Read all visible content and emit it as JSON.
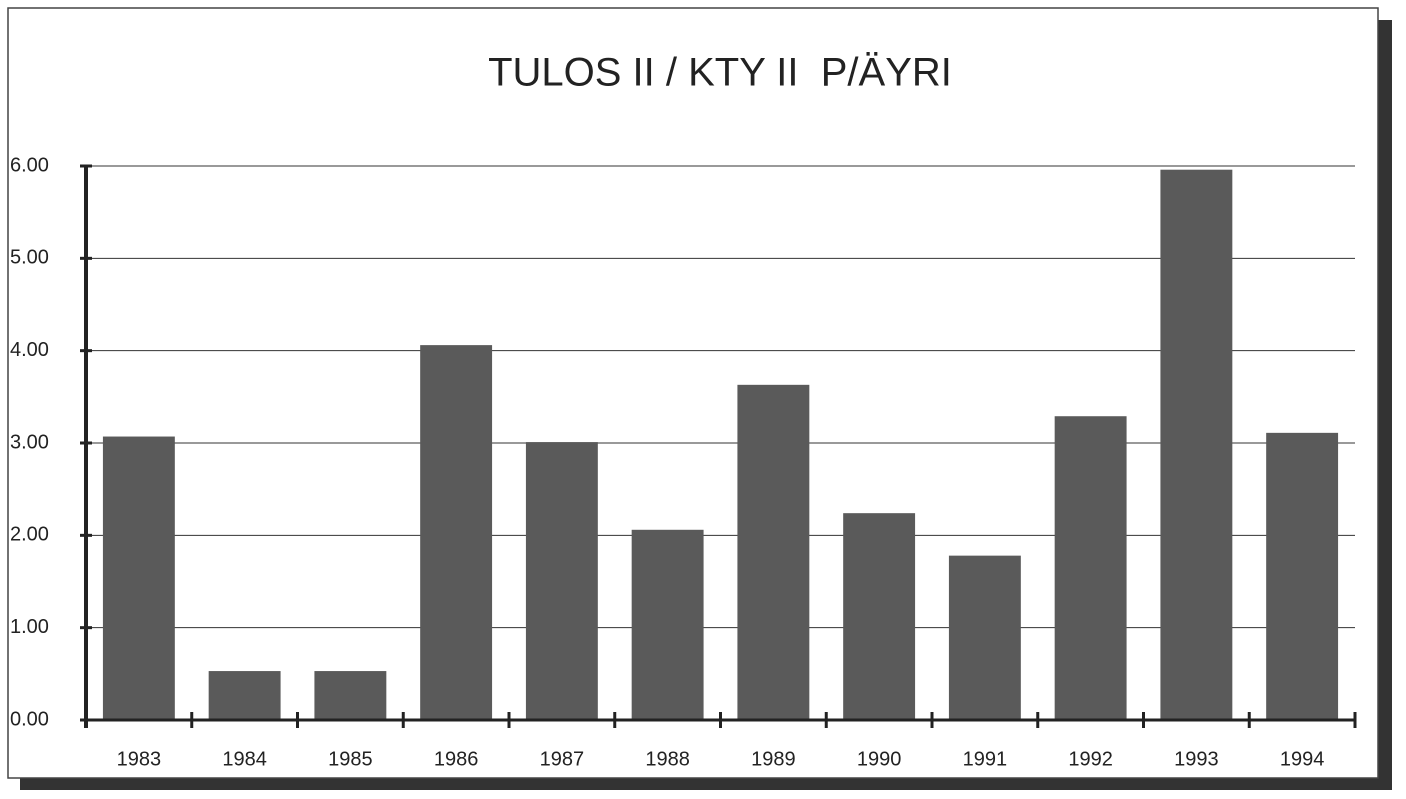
{
  "chart_data": {
    "type": "bar",
    "title": "TULOS II / KTY II  P/ÄYRI",
    "categories": [
      "1983",
      "1984",
      "1985",
      "1986",
      "1987",
      "1988",
      "1989",
      "1990",
      "1991",
      "1992",
      "1993",
      "1994"
    ],
    "values": [
      3.07,
      0.53,
      0.53,
      4.06,
      3.01,
      2.06,
      3.63,
      2.24,
      1.78,
      3.29,
      5.96,
      3.11
    ],
    "color": "#5a5a5a",
    "ylim": [
      0,
      6
    ],
    "yticks": [
      {
        "value": 0,
        "label": "0.00"
      },
      {
        "value": 1,
        "label": "1.00"
      },
      {
        "value": 2,
        "label": "2.00"
      },
      {
        "value": 3,
        "label": "3.00"
      },
      {
        "value": 4,
        "label": "4.00"
      },
      {
        "value": 5,
        "label": "5.00"
      },
      {
        "value": 6,
        "label": "6.00"
      }
    ],
    "grid": true
  }
}
